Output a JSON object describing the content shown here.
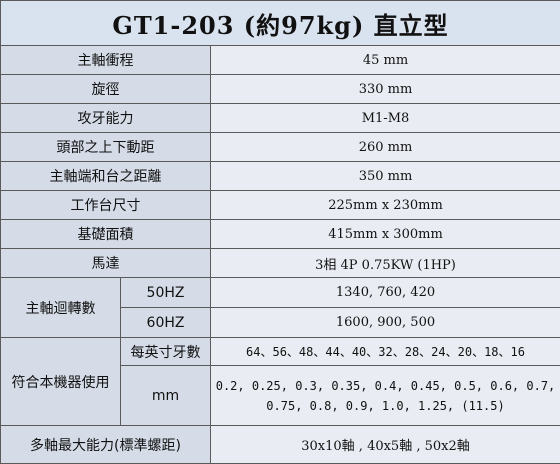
{
  "title": "GT1-203 (約97kg) 直立型",
  "rows": [
    {
      "label": "主軸衝程",
      "value": "45 mm"
    },
    {
      "label": "旋徑",
      "value": "330 mm"
    },
    {
      "label": "攻牙能力",
      "value": "M1-M8"
    },
    {
      "label": "頭部之上下動距",
      "value": "260 mm"
    },
    {
      "label": "主軸端和台之距離",
      "value": "350 mm"
    },
    {
      "label": "工作台尺寸",
      "value": "225mm x 230mm"
    },
    {
      "label": "基礎面積",
      "value": "415mm x 300mm"
    },
    {
      "label": "馬達",
      "value": "3相 4P 0.75KW (1HP)"
    }
  ],
  "spindle_speed": {
    "label": "主軸迴轉數",
    "rows": [
      {
        "label": "50HZ",
        "value": "1340, 760, 420"
      },
      {
        "label": "60HZ",
        "value": "1600, 900, 500"
      }
    ]
  },
  "compatible": {
    "label": "符合本機器使用",
    "rows": [
      {
        "label": "每英寸牙數",
        "value": "64、56、48、44、40、32、28、24、20、18、16"
      },
      {
        "label": "mm",
        "value": "0.2, 0.25, 0.3, 0.35, 0.4, 0.45, 0.5, 0.6, 0.7, 0.75, 0.8, 0.9, 1.0, 1.25, (11.5)"
      }
    ]
  },
  "multi_axis": {
    "label": "多軸最大能力(標準螺距)",
    "value": "30x10軸 , 40x5軸 , 50x2軸"
  }
}
